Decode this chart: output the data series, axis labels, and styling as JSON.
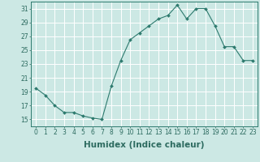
{
  "xlabel": "Humidex (Indice chaleur)",
  "x_values": [
    0,
    1,
    2,
    3,
    4,
    5,
    6,
    7,
    8,
    9,
    10,
    11,
    12,
    13,
    14,
    15,
    16,
    17,
    18,
    19,
    20,
    21,
    22,
    23
  ],
  "y_values": [
    19.5,
    18.5,
    17.0,
    16.0,
    16.0,
    15.5,
    15.2,
    15.0,
    19.8,
    23.5,
    26.5,
    27.5,
    28.5,
    29.5,
    30.0,
    31.5,
    29.5,
    31.0,
    31.0,
    28.5,
    25.5,
    25.5,
    23.5,
    23.5
  ],
  "ylim": [
    14,
    32
  ],
  "xlim": [
    -0.5,
    23.5
  ],
  "yticks": [
    15,
    17,
    19,
    21,
    23,
    25,
    27,
    29,
    31
  ],
  "xticks": [
    0,
    1,
    2,
    3,
    4,
    5,
    6,
    7,
    8,
    9,
    10,
    11,
    12,
    13,
    14,
    15,
    16,
    17,
    18,
    19,
    20,
    21,
    22,
    23
  ],
  "line_color": "#2d7a6e",
  "marker_color": "#2d7a6e",
  "bg_color": "#cce8e4",
  "grid_color": "#ffffff",
  "tick_label_color": "#2d6b60",
  "axis_label_color": "#2d6b60",
  "font_size": 5.5,
  "label_font_size": 7.5
}
